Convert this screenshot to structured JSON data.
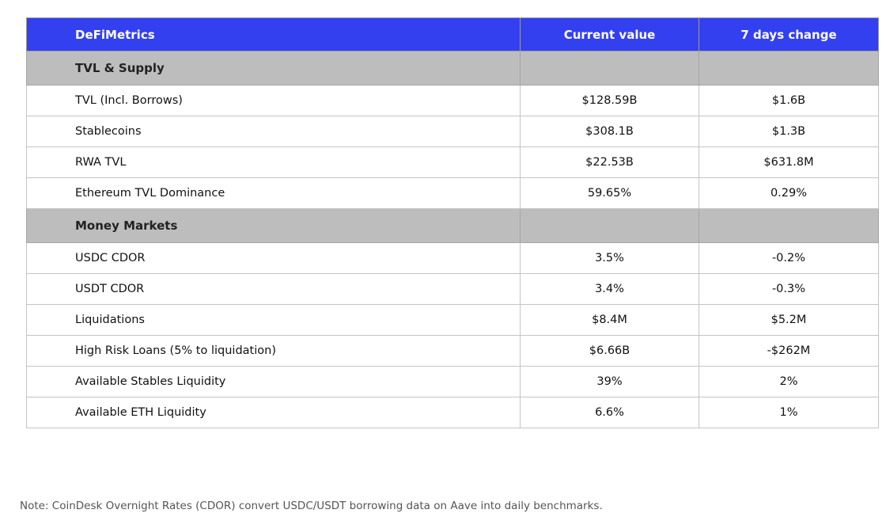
{
  "table": {
    "columns": [
      "DeFiMetrics",
      "Current value",
      "7 days change"
    ],
    "colors": {
      "header_bg": "#3340f0",
      "header_text": "#ffffff",
      "section_bg": "#bdbdbd",
      "border": "#bdbdbd"
    },
    "sections": [
      {
        "label": "TVL & Supply",
        "rows": [
          {
            "metric": "TVL (Incl. Borrows)",
            "current": "$128.59B",
            "change": "$1.6B"
          },
          {
            "metric": "Stablecoins",
            "current": "$308.1B",
            "change": "$1.3B"
          },
          {
            "metric": "RWA TVL",
            "current": "$22.53B",
            "change": "$631.8M"
          },
          {
            "metric": "Ethereum TVL Dominance",
            "current": "59.65%",
            "change": "0.29%"
          }
        ]
      },
      {
        "label": "Money Markets",
        "rows": [
          {
            "metric": "USDC CDOR",
            "current": "3.5%",
            "change": "-0.2%"
          },
          {
            "metric": "USDT CDOR",
            "current": "3.4%",
            "change": "-0.3%"
          },
          {
            "metric": "Liquidations",
            "current": "$8.4M",
            "change": "$5.2M"
          },
          {
            "metric": "High Risk Loans (5% to liquidation)",
            "current": "$6.66B",
            "change": "-$262M"
          },
          {
            "metric": "Available Stables Liquidity",
            "current": "39%",
            "change": "2%"
          },
          {
            "metric": "Available ETH Liquidity",
            "current": "6.6%",
            "change": "1%"
          }
        ]
      }
    ]
  },
  "footnote": "Note: CoinDesk Overnight Rates (CDOR) convert USDC/USDT borrowing data on Aave into daily benchmarks."
}
